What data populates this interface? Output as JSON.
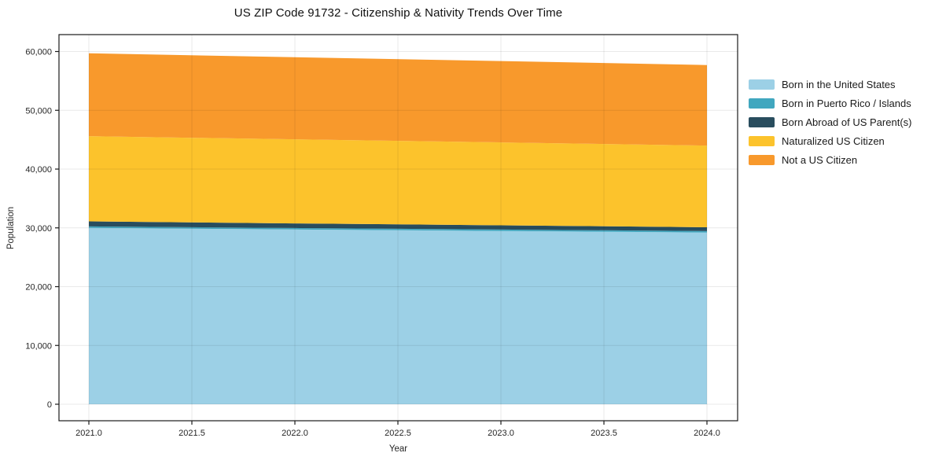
{
  "chart_data": {
    "type": "area",
    "stacked": true,
    "title": "US ZIP Code 91732 - Citizenship & Nativity Trends Over Time",
    "xlabel": "Year",
    "ylabel": "Population",
    "grid": true,
    "legend_position": "right-outside",
    "x": [
      2021,
      2022,
      2023,
      2024
    ],
    "series": [
      {
        "name": "Born in the United States",
        "color": "#9CD0E6",
        "values": [
          30000,
          29730,
          29470,
          29200
        ]
      },
      {
        "name": "Born in Puerto Rico / Islands",
        "color": "#41A7BF",
        "values": [
          250,
          250,
          250,
          250
        ]
      },
      {
        "name": "Born Abroad of US Parent(s)",
        "color": "#294D5E",
        "values": [
          850,
          780,
          720,
          650
        ]
      },
      {
        "name": "Naturalized US Citizen",
        "color": "#FCC32C",
        "values": [
          14500,
          14300,
          14100,
          13900
        ]
      },
      {
        "name": "Not a US Citizen",
        "color": "#F8992C",
        "values": [
          14100,
          13970,
          13840,
          13700
        ]
      }
    ],
    "totals": [
      59700,
      59030,
      58380,
      57700
    ],
    "x_ticks": [
      {
        "value": 2021.0,
        "label": "2021.0"
      },
      {
        "value": 2021.5,
        "label": "2021.5"
      },
      {
        "value": 2022.0,
        "label": "2022.0"
      },
      {
        "value": 2022.5,
        "label": "2022.5"
      },
      {
        "value": 2023.0,
        "label": "2023.0"
      },
      {
        "value": 2023.5,
        "label": "2023.5"
      },
      {
        "value": 2024.0,
        "label": "2024.0"
      }
    ],
    "y_ticks": [
      {
        "value": 0,
        "label": "0"
      },
      {
        "value": 10000,
        "label": "10,000"
      },
      {
        "value": 20000,
        "label": "20,000"
      },
      {
        "value": 30000,
        "label": "30,000"
      },
      {
        "value": 40000,
        "label": "40,000"
      },
      {
        "value": 50000,
        "label": "50,000"
      },
      {
        "value": 60000,
        "label": "60,000"
      }
    ],
    "ylim": [
      0,
      62900
    ],
    "xlim": [
      2020.85,
      2024.15
    ]
  }
}
